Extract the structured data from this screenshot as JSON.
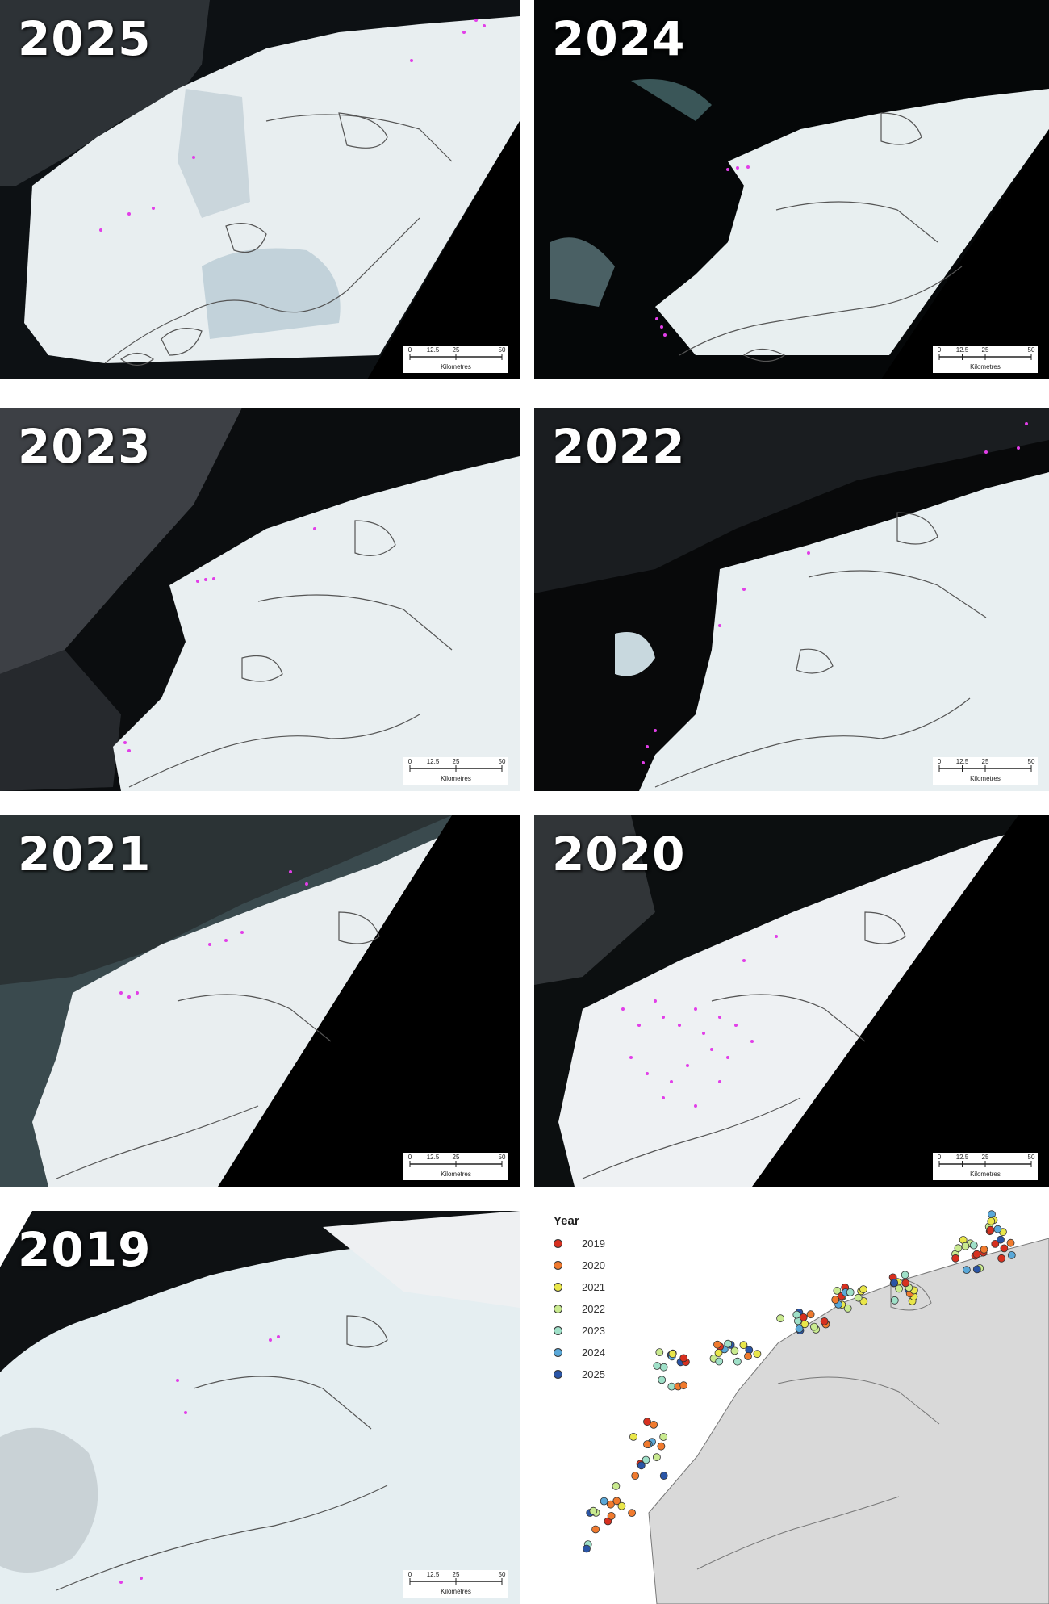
{
  "panels": [
    {
      "year_label": "2025"
    },
    {
      "year_label": "2024"
    },
    {
      "year_label": "2023"
    },
    {
      "year_label": "2022"
    },
    {
      "year_label": "2021"
    },
    {
      "year_label": "2020"
    },
    {
      "year_label": "2019"
    }
  ],
  "scalebar": {
    "ticks": [
      "0",
      "12.5",
      "25",
      "50"
    ],
    "unit": "Kilometres"
  },
  "legend": {
    "title": "Year",
    "items": [
      {
        "label": "2019",
        "color": "#d7301f"
      },
      {
        "label": "2020",
        "color": "#f07a2e"
      },
      {
        "label": "2021",
        "color": "#e9e64a"
      },
      {
        "label": "2022",
        "color": "#c9ea8f"
      },
      {
        "label": "2023",
        "color": "#9fe0c8"
      },
      {
        "label": "2024",
        "color": "#5aa8d8"
      },
      {
        "label": "2025",
        "color": "#2a55a6"
      }
    ]
  },
  "colors": {
    "point_marker": "#e23ee8",
    "ice": "#e8eff0",
    "land_grey": "#d9d9d9",
    "coastline": "#555555"
  }
}
